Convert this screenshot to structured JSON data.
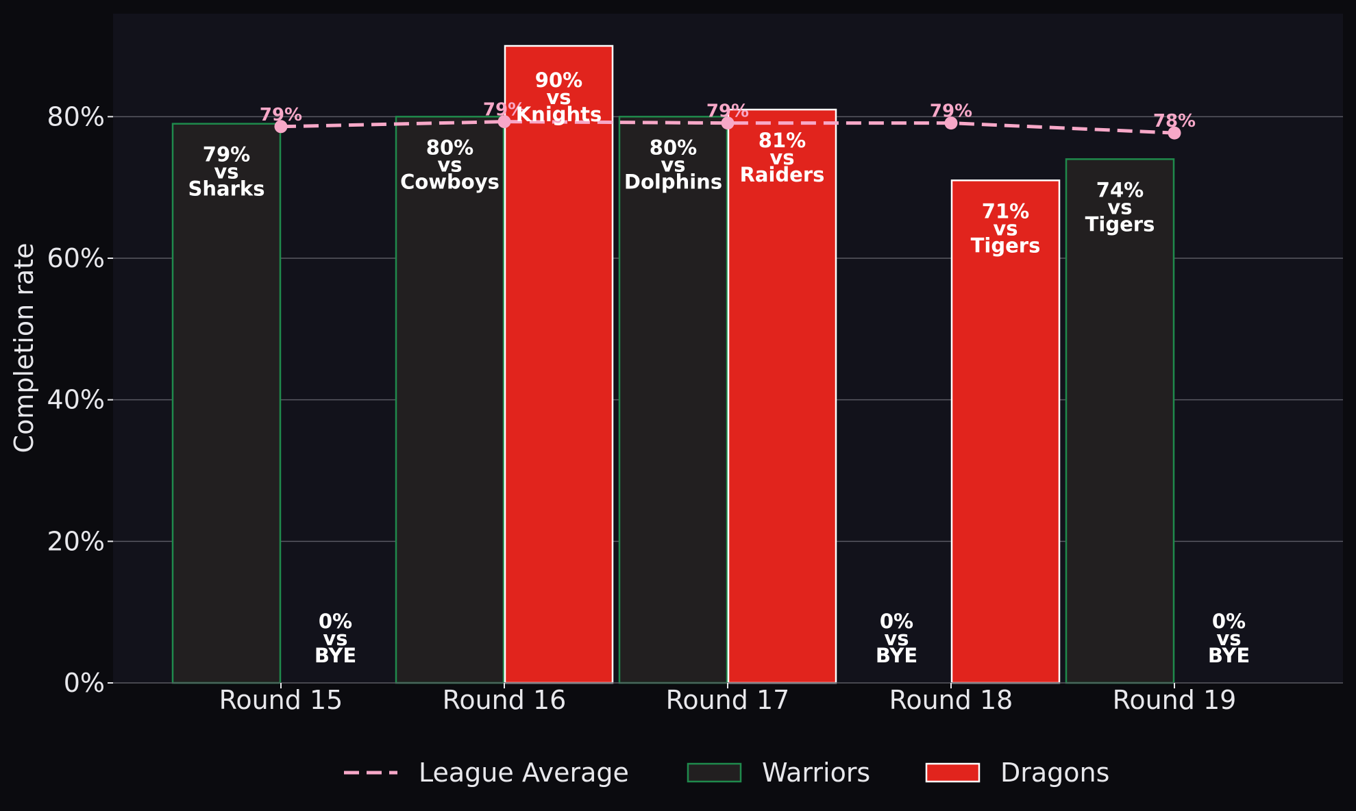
{
  "chart_data": {
    "type": "bar",
    "categories": [
      "Round 15",
      "Round 16",
      "Round 17",
      "Round 18",
      "Round 19"
    ],
    "ylabel": "Completion rate",
    "ylim": [
      0,
      0.945
    ],
    "yticks": [
      0,
      0.2,
      0.4,
      0.6,
      0.8
    ],
    "ytick_labels": [
      "0%",
      "20%",
      "40%",
      "60%",
      "80%"
    ],
    "grid": true,
    "legend_position": "bottom-center",
    "series": [
      {
        "name": "Warriors",
        "color": "#221f20",
        "edge_color": "#1f8a4c",
        "values": [
          0.79,
          0.8,
          0.8,
          0.0,
          0.74
        ],
        "labels": [
          [
            "79%",
            "vs",
            "Sharks"
          ],
          [
            "80%",
            "vs",
            "Cowboys"
          ],
          [
            "80%",
            "vs",
            "Dolphins"
          ],
          [
            "0%",
            "vs",
            "BYE"
          ],
          [
            "74%",
            "vs",
            "Tigers"
          ]
        ]
      },
      {
        "name": "Dragons",
        "color": "#e1241d",
        "edge_color": "#ffffff",
        "values": [
          0.0,
          0.9,
          0.81,
          0.71,
          0.0
        ],
        "labels": [
          [
            "0%",
            "vs",
            "BYE"
          ],
          [
            "90%",
            "vs",
            "Knights"
          ],
          [
            "81%",
            "vs",
            "Raiders"
          ],
          [
            "71%",
            "vs",
            "Tigers"
          ],
          [
            "0%",
            "vs",
            "BYE"
          ]
        ]
      }
    ],
    "league_average": {
      "name": "League Average",
      "color": "#f7a8c8",
      "values": [
        0.786,
        0.793,
        0.791,
        0.791,
        0.777
      ],
      "labels": [
        "79%",
        "79%",
        "79%",
        "79%",
        "78%"
      ]
    }
  }
}
